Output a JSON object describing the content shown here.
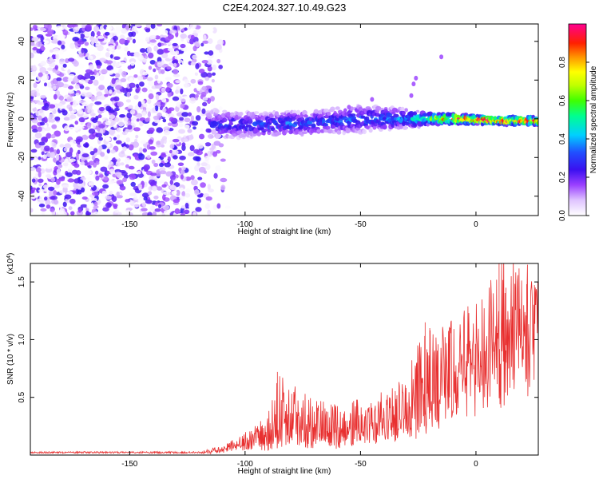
{
  "title": "C2E4.2024.327.10.49.G23",
  "chart_data": [
    {
      "type": "heatmap",
      "xlabel": "Height of straight line (km)",
      "ylabel": "Frequency (Hz)",
      "xlim": [
        -193,
        27
      ],
      "ylim": [
        -50,
        49
      ],
      "x_ticks": [
        "-150",
        "-100",
        "-50",
        "0"
      ],
      "x_tick_values": [
        -150,
        -100,
        -50,
        0
      ],
      "y_ticks": [
        "40",
        "20",
        "0",
        "-20",
        "-40"
      ],
      "y_tick_values": [
        40,
        20,
        0,
        -20,
        -40
      ],
      "colorbar": {
        "label": "Normalized spectral amplitude",
        "range": [
          0,
          1
        ],
        "ticks": [
          "0.0",
          "0.2",
          "0.4",
          "0.6",
          "0.8"
        ],
        "tick_values": [
          0.0,
          0.2,
          0.4,
          0.6,
          0.8
        ],
        "colors": [
          "#ffffff",
          "#e8d0ff",
          "#a060ff",
          "#5a00e0",
          "#2030ff",
          "#00c8ff",
          "#00ff80",
          "#80ff00",
          "#ffff00",
          "#ff8000",
          "#ff0000",
          "#ff00a0"
        ]
      },
      "noise_region_x": [
        -193,
        -110
      ],
      "signal_band": [
        {
          "x": -110,
          "center": -3,
          "width": 14,
          "amp": 0.25
        },
        {
          "x": -90,
          "center": -3,
          "width": 12,
          "amp": 0.3
        },
        {
          "x": -70,
          "center": -2,
          "width": 12,
          "amp": 0.3
        },
        {
          "x": -50,
          "center": 0,
          "width": 14,
          "amp": 0.3
        },
        {
          "x": -30,
          "center": 0,
          "width": 10,
          "amp": 0.35
        },
        {
          "x": -20,
          "center": 0,
          "width": 6,
          "amp": 0.6
        },
        {
          "x": -10,
          "center": 0,
          "width": 5,
          "amp": 0.9
        },
        {
          "x": 10,
          "center": -1,
          "width": 4,
          "amp": 0.95
        },
        {
          "x": 27,
          "center": -1,
          "width": 4,
          "amp": 0.9
        }
      ]
    },
    {
      "type": "line",
      "xlabel": "Height of straight line (km)",
      "ylabel": "SNR (10 * v/v)",
      "y_multiplier": "(x10^4)",
      "xlim": [
        -193,
        27
      ],
      "ylim": [
        0,
        1.66
      ],
      "x_ticks": [
        "-150",
        "-100",
        "-50",
        "0"
      ],
      "x_tick_values": [
        -150,
        -100,
        -50,
        0
      ],
      "y_ticks": [
        "1.5",
        "1.0",
        "0.5"
      ],
      "y_tick_values": [
        1.5,
        1.0,
        0.5
      ],
      "color": "#e83030",
      "envelope": [
        {
          "x": -193,
          "base": 0.02,
          "peak": 0.03
        },
        {
          "x": -120,
          "base": 0.02,
          "peak": 0.03
        },
        {
          "x": -110,
          "base": 0.04,
          "peak": 0.08
        },
        {
          "x": -100,
          "base": 0.08,
          "peak": 0.2
        },
        {
          "x": -90,
          "base": 0.1,
          "peak": 0.35
        },
        {
          "x": -86,
          "base": 0.12,
          "peak": 0.72
        },
        {
          "x": -70,
          "base": 0.12,
          "peak": 0.48
        },
        {
          "x": -60,
          "base": 0.12,
          "peak": 0.45
        },
        {
          "x": -50,
          "base": 0.15,
          "peak": 0.5
        },
        {
          "x": -40,
          "base": 0.2,
          "peak": 0.55
        },
        {
          "x": -30,
          "base": 0.25,
          "peak": 0.7
        },
        {
          "x": -22,
          "base": 0.35,
          "peak": 1.15
        },
        {
          "x": -15,
          "base": 0.4,
          "peak": 1.1
        },
        {
          "x": -10,
          "base": 0.6,
          "peak": 1.2
        },
        {
          "x": 0,
          "base": 0.8,
          "peak": 1.35
        },
        {
          "x": 10,
          "base": 0.9,
          "peak": 1.66
        },
        {
          "x": 27,
          "base": 1.2,
          "peak": 1.5
        }
      ]
    }
  ]
}
